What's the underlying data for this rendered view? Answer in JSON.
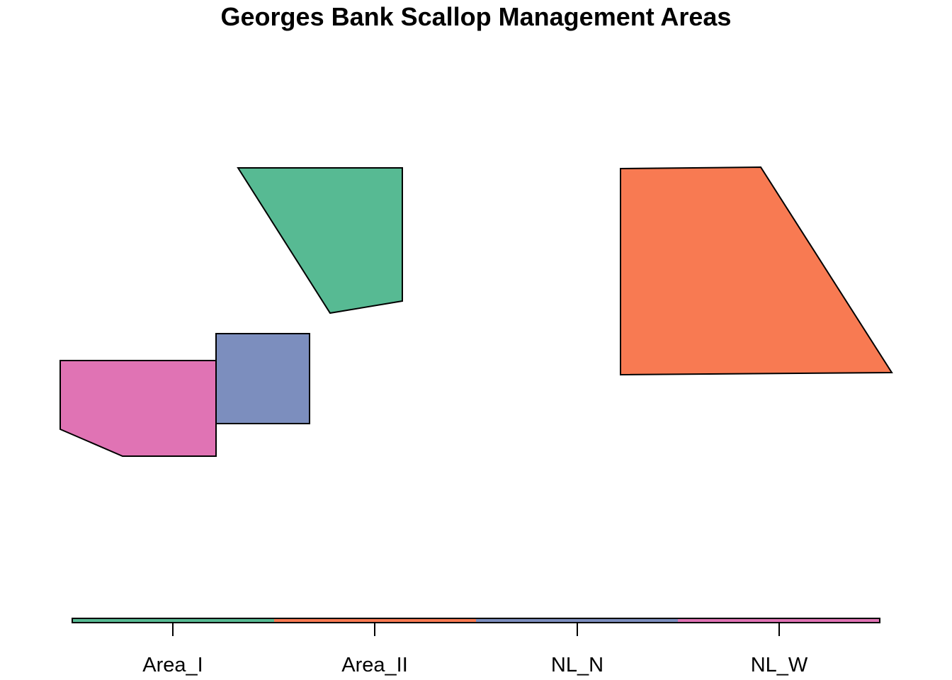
{
  "title": "Georges Bank Scallop Management Areas",
  "areas": [
    {
      "id": "Area_I",
      "name": "Area_I",
      "color": "#57BA93"
    },
    {
      "id": "Area_II",
      "name": "Area_II",
      "color": "#F87A52"
    },
    {
      "id": "NL_N",
      "name": "NL_N",
      "color": "#7C8EBE"
    },
    {
      "id": "NL_W",
      "name": "NL_W",
      "color": "#E073B4"
    }
  ],
  "legend": {
    "labels": [
      "Area_I",
      "Area_II",
      "NL_N",
      "NL_W"
    ]
  }
}
